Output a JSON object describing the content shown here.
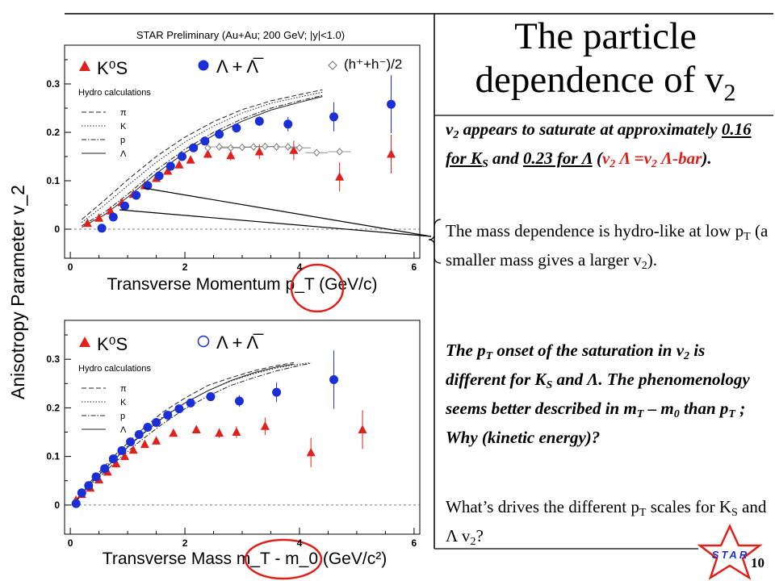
{
  "slide": {
    "title_line1": "The particle",
    "title_line2": "dependence of v",
    "title_sub": "2",
    "number": "10",
    "logo_text": "STAR",
    "colors": {
      "kaon": "#e0201b",
      "lambda": "#1a2fd6",
      "hadron": "#7a7a7a",
      "circle": "#e0201b"
    }
  },
  "text": {
    "p1_v": "v",
    "p1_v_sub": "2",
    "p1_a": " appears to saturate at approximately ",
    "p1_k": "0.16 for K",
    "p1_k_sub": "S",
    "p1_and": " and ",
    "p1_l": "0.23 for Λ",
    "p1_paren_open": " (",
    "p1_v2": "v",
    "p1_v2_sub": "2",
    "p1_eq": " Λ =v",
    "p1_v3_sub": "2",
    "p1_bar": " Λ-bar",
    "p1_end": ").",
    "p2_a": "The mass dependence is hydro-like at low p",
    "p2_pt_sub": "T",
    "p2_b": " (a smaller mass gives a larger v",
    "p2_v_sub": "2",
    "p2_c": ").",
    "p3_a": "The p",
    "p3_a_sub": "T",
    "p3_b": " onset of the saturation in v",
    "p3_b_sub": "2",
    "p3_c": " is different for K",
    "p3_c_sub": "S",
    "p3_d": " and Λ. The phenomenology seems better described in m",
    "p3_d_sub": "T",
    "p3_e": " – m",
    "p3_e_sub": "0",
    "p3_f": " than p",
    "p3_f_sub": "T",
    "p3_g": " ; Why (kinetic energy)?",
    "p4_a": "What’s drives the different p",
    "p4_a_sub": "T",
    "p4_b": " scales for K",
    "p4_b_sub": "S",
    "p4_c": " and Λ v",
    "p4_c_sub": "2",
    "p4_d": "?"
  },
  "chart_data": [
    {
      "type": "scatter",
      "title": "STAR Preliminary (Au+Au; 200 GeV; |y|<1.0)",
      "xlabel": "Transverse Momentum p_T (GeV/c)",
      "ylabel": "Anisotropy Parameter v_2",
      "xlim": [
        -0.1,
        6.1
      ],
      "ylim": [
        -0.06,
        0.38
      ],
      "xticks": [
        "0",
        "2",
        "4",
        "6"
      ],
      "yticks": [
        "0",
        "0.1",
        "0.2",
        "0.3"
      ],
      "grid": false,
      "legend_items": [
        "K⁰S",
        "Λ + Λ̅",
        "(h⁺+h⁻)/2"
      ],
      "hydro_label": "Hydro calculations",
      "hydro_items": [
        "π",
        "K",
        "p",
        "Λ"
      ],
      "series": [
        {
          "name": "K⁰S",
          "marker": "triangle",
          "points": [
            [
              0.3,
              0.012
            ],
            [
              0.5,
              0.023
            ],
            [
              0.7,
              0.038
            ],
            [
              0.9,
              0.055
            ],
            [
              1.1,
              0.072
            ],
            [
              1.3,
              0.09
            ],
            [
              1.5,
              0.105
            ],
            [
              1.7,
              0.12
            ],
            [
              1.9,
              0.133
            ],
            [
              2.1,
              0.143
            ],
            [
              2.4,
              0.155
            ],
            [
              2.8,
              0.152
            ],
            [
              3.3,
              0.16
            ],
            [
              3.9,
              0.163
            ],
            [
              4.7,
              0.108
            ],
            [
              5.6,
              0.155
            ]
          ],
          "err": [
            0.003,
            0.003,
            0.003,
            0.003,
            0.004,
            0.004,
            0.004,
            0.005,
            0.005,
            0.006,
            0.008,
            0.01,
            0.015,
            0.02,
            0.03,
            0.04
          ]
        },
        {
          "name": "Λ + Λ̅",
          "marker": "circle",
          "points": [
            [
              0.55,
              0.002
            ],
            [
              0.75,
              0.025
            ],
            [
              0.95,
              0.048
            ],
            [
              1.15,
              0.07
            ],
            [
              1.35,
              0.09
            ],
            [
              1.55,
              0.11
            ],
            [
              1.75,
              0.13
            ],
            [
              1.95,
              0.15
            ],
            [
              2.15,
              0.168
            ],
            [
              2.35,
              0.182
            ],
            [
              2.6,
              0.196
            ],
            [
              2.9,
              0.209
            ],
            [
              3.3,
              0.223
            ],
            [
              3.8,
              0.217
            ],
            [
              4.6,
              0.232
            ],
            [
              5.6,
              0.258
            ]
          ],
          "err": [
            0.004,
            0.004,
            0.004,
            0.004,
            0.004,
            0.004,
            0.004,
            0.005,
            0.005,
            0.005,
            0.006,
            0.007,
            0.01,
            0.015,
            0.03,
            0.06
          ]
        },
        {
          "name": "(h⁺+h⁻)/2",
          "marker": "diamond",
          "points": [
            [
              2.4,
              0.168
            ],
            [
              2.6,
              0.17
            ],
            [
              2.8,
              0.168
            ],
            [
              3.0,
              0.169
            ],
            [
              3.2,
              0.17
            ],
            [
              3.4,
              0.171
            ],
            [
              3.6,
              0.17
            ],
            [
              3.8,
              0.17
            ],
            [
              4.0,
              0.168
            ],
            [
              4.3,
              0.158
            ],
            [
              4.7,
              0.16
            ]
          ],
          "err": [
            0.002,
            0.002,
            0.002,
            0.002,
            0.002,
            0.003,
            0.003,
            0.003,
            0.004,
            0.005,
            0.007
          ]
        }
      ],
      "hydro_curves": [
        {
          "name": "π",
          "style": "dashed",
          "points": [
            [
              0.2,
              0.02
            ],
            [
              0.6,
              0.06
            ],
            [
              1,
              0.102
            ],
            [
              1.5,
              0.15
            ],
            [
              2,
              0.19
            ],
            [
              2.5,
              0.222
            ],
            [
              3,
              0.247
            ],
            [
              3.5,
              0.265
            ],
            [
              4,
              0.278
            ],
            [
              4.4,
              0.288
            ]
          ]
        },
        {
          "name": "K",
          "style": "dotted",
          "points": [
            [
              0.2,
              0.014
            ],
            [
              0.6,
              0.05
            ],
            [
              1,
              0.09
            ],
            [
              1.5,
              0.138
            ],
            [
              2,
              0.18
            ],
            [
              2.5,
              0.213
            ],
            [
              3,
              0.24
            ],
            [
              3.5,
              0.26
            ],
            [
              4,
              0.273
            ],
            [
              4.4,
              0.283
            ]
          ]
        },
        {
          "name": "p",
          "style": "dashdot",
          "points": [
            [
              0.2,
              0.007
            ],
            [
              0.6,
              0.035
            ],
            [
              1,
              0.072
            ],
            [
              1.5,
              0.122
            ],
            [
              2,
              0.165
            ],
            [
              2.5,
              0.2
            ],
            [
              3,
              0.228
            ],
            [
              3.5,
              0.25
            ],
            [
              4,
              0.265
            ],
            [
              4.4,
              0.276
            ]
          ]
        },
        {
          "name": "Λ",
          "style": "solid",
          "points": [
            [
              0.2,
              0.004
            ],
            [
              0.6,
              0.03
            ],
            [
              1,
              0.066
            ],
            [
              1.5,
              0.115
            ],
            [
              2,
              0.158
            ],
            [
              2.5,
              0.194
            ],
            [
              3,
              0.223
            ],
            [
              3.5,
              0.246
            ],
            [
              4,
              0.262
            ],
            [
              4.4,
              0.274
            ]
          ]
        }
      ]
    },
    {
      "type": "scatter",
      "xlabel": "Transverse Mass m_T - m_0 (GeV/c²)",
      "ylabel": "Anisotropy Parameter v_2",
      "xlim": [
        -0.1,
        6.1
      ],
      "ylim": [
        -0.06,
        0.38
      ],
      "xticks": [
        "0",
        "2",
        "4",
        "6"
      ],
      "yticks": [
        "0",
        "0.1",
        "0.2",
        "0.3"
      ],
      "grid": false,
      "legend_items": [
        "K⁰S",
        "Λ + Λ̅"
      ],
      "hydro_label": "Hydro calculations",
      "hydro_items": [
        "π",
        "K",
        "p",
        "Λ"
      ],
      "series": [
        {
          "name": "K⁰S",
          "marker": "triangle",
          "points": [
            [
              0.1,
              0.01
            ],
            [
              0.2,
              0.022
            ],
            [
              0.35,
              0.035
            ],
            [
              0.5,
              0.052
            ],
            [
              0.65,
              0.068
            ],
            [
              0.8,
              0.085
            ],
            [
              0.95,
              0.1
            ],
            [
              1.1,
              0.113
            ],
            [
              1.3,
              0.125
            ],
            [
              1.5,
              0.132
            ],
            [
              1.8,
              0.148
            ],
            [
              2.2,
              0.155
            ],
            [
              2.6,
              0.148
            ],
            [
              2.9,
              0.15
            ],
            [
              3.4,
              0.162
            ],
            [
              4.2,
              0.108
            ],
            [
              5.1,
              0.155
            ]
          ],
          "err": [
            0.003,
            0.003,
            0.003,
            0.003,
            0.003,
            0.004,
            0.004,
            0.004,
            0.005,
            0.005,
            0.006,
            0.008,
            0.01,
            0.012,
            0.018,
            0.03,
            0.04
          ]
        },
        {
          "name": "Λ + Λ̅",
          "marker": "circle",
          "points": [
            [
              0.1,
              0.003
            ],
            [
              0.2,
              0.025
            ],
            [
              0.32,
              0.04
            ],
            [
              0.45,
              0.058
            ],
            [
              0.6,
              0.075
            ],
            [
              0.75,
              0.095
            ],
            [
              0.9,
              0.112
            ],
            [
              1.05,
              0.13
            ],
            [
              1.2,
              0.145
            ],
            [
              1.35,
              0.16
            ],
            [
              1.5,
              0.17
            ],
            [
              1.7,
              0.185
            ],
            [
              1.9,
              0.198
            ],
            [
              2.1,
              0.21
            ],
            [
              2.45,
              0.223
            ],
            [
              2.95,
              0.214
            ],
            [
              3.6,
              0.232
            ],
            [
              4.6,
              0.258
            ]
          ],
          "err": [
            0.004,
            0.004,
            0.004,
            0.004,
            0.004,
            0.004,
            0.004,
            0.004,
            0.004,
            0.005,
            0.005,
            0.005,
            0.006,
            0.007,
            0.008,
            0.012,
            0.02,
            0.06
          ]
        }
      ],
      "hydro_curves": [
        {
          "name": "π",
          "style": "dashed",
          "points": [
            [
              0.1,
              0.01
            ],
            [
              0.4,
              0.055
            ],
            [
              0.8,
              0.105
            ],
            [
              1.2,
              0.15
            ],
            [
              1.6,
              0.19
            ],
            [
              2,
              0.22
            ],
            [
              2.4,
              0.246
            ],
            [
              2.8,
              0.262
            ],
            [
              3.2,
              0.276
            ],
            [
              3.6,
              0.287
            ],
            [
              3.9,
              0.293
            ]
          ]
        },
        {
          "name": "K",
          "style": "dotted",
          "points": [
            [
              0.1,
              0.01
            ],
            [
              0.4,
              0.052
            ],
            [
              0.8,
              0.1
            ],
            [
              1.2,
              0.142
            ],
            [
              1.6,
              0.18
            ],
            [
              2,
              0.21
            ],
            [
              2.4,
              0.235
            ],
            [
              2.8,
              0.255
            ],
            [
              3.2,
              0.27
            ],
            [
              3.6,
              0.282
            ],
            [
              4,
              0.29
            ],
            [
              4.2,
              0.293
            ]
          ]
        },
        {
          "name": "p",
          "style": "dashdot",
          "points": [
            [
              0.1,
              0.008
            ],
            [
              0.4,
              0.046
            ],
            [
              0.8,
              0.09
            ],
            [
              1.2,
              0.13
            ],
            [
              1.6,
              0.166
            ],
            [
              2,
              0.198
            ],
            [
              2.4,
              0.224
            ],
            [
              2.8,
              0.246
            ],
            [
              3.2,
              0.262
            ],
            [
              3.6,
              0.276
            ],
            [
              4,
              0.287
            ],
            [
              4.2,
              0.292
            ]
          ]
        },
        {
          "name": "Λ",
          "style": "solid",
          "points": [
            [
              0.1,
              0.008
            ],
            [
              0.4,
              0.05
            ],
            [
              0.8,
              0.097
            ],
            [
              1.2,
              0.14
            ],
            [
              1.6,
              0.178
            ],
            [
              2,
              0.21
            ],
            [
              2.4,
              0.235
            ],
            [
              2.8,
              0.256
            ],
            [
              3.2,
              0.272
            ],
            [
              3.6,
              0.284
            ],
            [
              3.9,
              0.29
            ]
          ]
        }
      ]
    }
  ]
}
